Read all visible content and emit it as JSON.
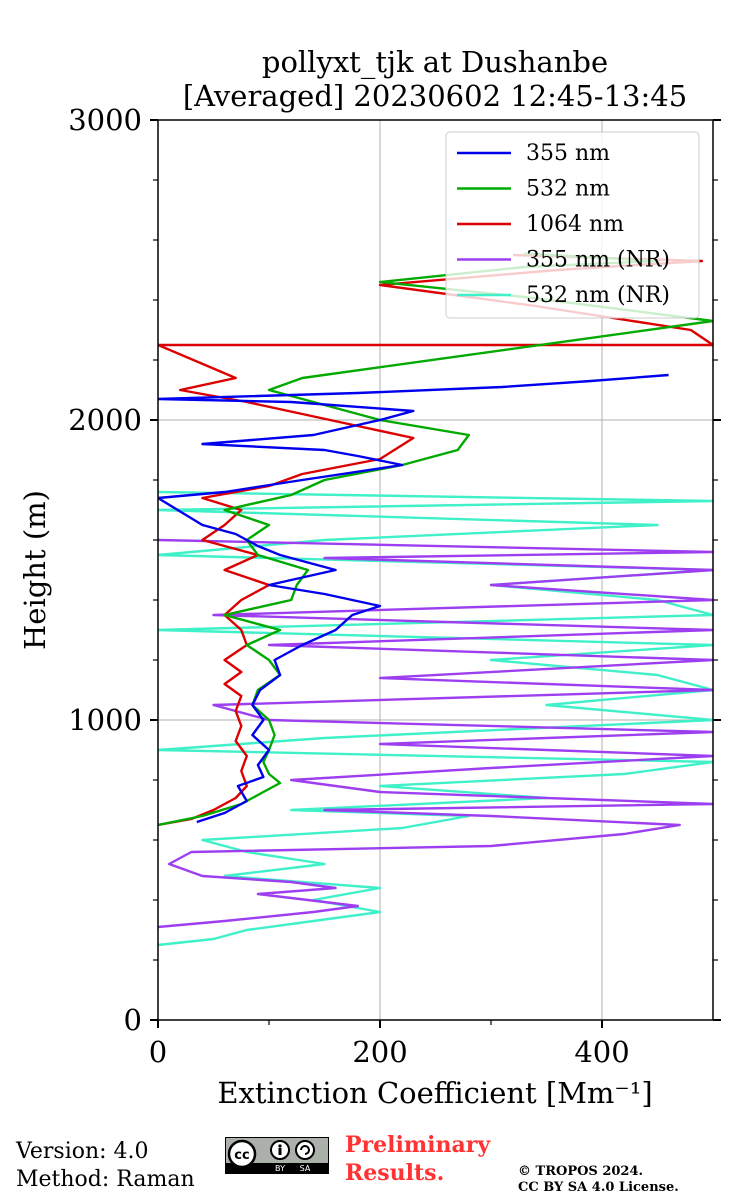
{
  "chart_data": {
    "type": "line",
    "title": "pollyxt_tjk at Dushanbe",
    "subtitle": "[Averaged] 20230602 12:45-13:45",
    "xlabel": "Extinction Coefficient [Mm⁻¹]",
    "ylabel": "Height (m)",
    "xlim": [
      0,
      500
    ],
    "ylim": [
      0,
      3000
    ],
    "xticks": [
      "0",
      "200",
      "400"
    ],
    "yticks": [
      "0",
      "1000",
      "2000",
      "3000"
    ],
    "grid": true,
    "legend_position": "top-right",
    "series": [
      {
        "name": "355 nm",
        "color": "#0000ee",
        "points": [
          [
            35,
            660
          ],
          [
            60,
            690
          ],
          [
            80,
            730
          ],
          [
            72,
            780
          ],
          [
            95,
            810
          ],
          [
            90,
            850
          ],
          [
            100,
            900
          ],
          [
            85,
            950
          ],
          [
            95,
            1000
          ],
          [
            85,
            1050
          ],
          [
            92,
            1100
          ],
          [
            110,
            1150
          ],
          [
            105,
            1200
          ],
          [
            130,
            1250
          ],
          [
            160,
            1300
          ],
          [
            175,
            1350
          ],
          [
            200,
            1380
          ],
          [
            150,
            1420
          ],
          [
            100,
            1450
          ],
          [
            160,
            1500
          ],
          [
            110,
            1550
          ],
          [
            90,
            1580
          ],
          [
            70,
            1620
          ],
          [
            40,
            1650
          ],
          [
            0,
            1740
          ],
          [
            60,
            1760
          ],
          [
            130,
            1800
          ],
          [
            220,
            1850
          ],
          [
            180,
            1880
          ],
          [
            150,
            1900
          ],
          [
            40,
            1920
          ],
          [
            140,
            1950
          ],
          [
            200,
            2000
          ],
          [
            230,
            2030
          ],
          [
            120,
            2060
          ],
          [
            0,
            2070
          ],
          [
            180,
            2090
          ],
          [
            310,
            2110
          ],
          [
            390,
            2130
          ],
          [
            460,
            2150
          ]
        ]
      },
      {
        "name": "532 nm",
        "color": "#00aa00",
        "points": [
          [
            0,
            650
          ],
          [
            40,
            680
          ],
          [
            75,
            720
          ],
          [
            95,
            760
          ],
          [
            110,
            790
          ],
          [
            100,
            820
          ],
          [
            95,
            860
          ],
          [
            100,
            900
          ],
          [
            105,
            950
          ],
          [
            100,
            1000
          ],
          [
            85,
            1050
          ],
          [
            90,
            1100
          ],
          [
            110,
            1150
          ],
          [
            100,
            1200
          ],
          [
            80,
            1250
          ],
          [
            110,
            1300
          ],
          [
            60,
            1350
          ],
          [
            120,
            1400
          ],
          [
            125,
            1450
          ],
          [
            135,
            1500
          ],
          [
            90,
            1550
          ],
          [
            80,
            1600
          ],
          [
            100,
            1650
          ],
          [
            60,
            1700
          ],
          [
            120,
            1750
          ],
          [
            150,
            1800
          ],
          [
            220,
            1850
          ],
          [
            270,
            1900
          ],
          [
            280,
            1950
          ],
          [
            200,
            2000
          ],
          [
            150,
            2050
          ],
          [
            100,
            2100
          ],
          [
            130,
            2140
          ],
          [
            500,
            2330
          ],
          [
            330,
            2410
          ],
          [
            200,
            2460
          ],
          [
            330,
            2510
          ],
          [
            450,
            2530
          ],
          [
            330,
            2555
          ]
        ]
      },
      {
        "name": "1064 nm",
        "color": "#dd0000",
        "points": [
          [
            0,
            650
          ],
          [
            30,
            670
          ],
          [
            50,
            700
          ],
          [
            70,
            740
          ],
          [
            80,
            780
          ],
          [
            75,
            830
          ],
          [
            80,
            880
          ],
          [
            70,
            930
          ],
          [
            75,
            980
          ],
          [
            70,
            1030
          ],
          [
            75,
            1080
          ],
          [
            60,
            1120
          ],
          [
            75,
            1160
          ],
          [
            60,
            1200
          ],
          [
            80,
            1250
          ],
          [
            75,
            1300
          ],
          [
            60,
            1350
          ],
          [
            75,
            1400
          ],
          [
            100,
            1450
          ],
          [
            60,
            1500
          ],
          [
            90,
            1550
          ],
          [
            40,
            1600
          ],
          [
            60,
            1650
          ],
          [
            75,
            1700
          ],
          [
            40,
            1740
          ],
          [
            100,
            1780
          ],
          [
            130,
            1820
          ],
          [
            200,
            1870
          ],
          [
            230,
            1940
          ],
          [
            180,
            1980
          ],
          [
            130,
            2020
          ],
          [
            80,
            2060
          ],
          [
            20,
            2100
          ],
          [
            70,
            2140
          ],
          [
            0,
            2250
          ],
          [
            500,
            2250
          ],
          [
            480,
            2300
          ],
          [
            340,
            2380
          ],
          [
            200,
            2450
          ],
          [
            360,
            2500
          ],
          [
            490,
            2530
          ],
          [
            320,
            2550
          ]
        ]
      },
      {
        "name": "355 nm (NR)",
        "color": "#9d3ff0",
        "points": [
          [
            0,
            310
          ],
          [
            60,
            330
          ],
          [
            140,
            360
          ],
          [
            180,
            380
          ],
          [
            90,
            420
          ],
          [
            160,
            440
          ],
          [
            120,
            460
          ],
          [
            40,
            480
          ],
          [
            10,
            520
          ],
          [
            30,
            560
          ],
          [
            300,
            580
          ],
          [
            420,
            620
          ],
          [
            470,
            650
          ],
          [
            300,
            680
          ],
          [
            150,
            700
          ],
          [
            500,
            720
          ],
          [
            200,
            760
          ],
          [
            120,
            800
          ],
          [
            300,
            840
          ],
          [
            500,
            880
          ],
          [
            200,
            920
          ],
          [
            500,
            960
          ],
          [
            100,
            1000
          ],
          [
            50,
            1050
          ],
          [
            500,
            1100
          ],
          [
            200,
            1140
          ],
          [
            500,
            1200
          ],
          [
            100,
            1250
          ],
          [
            500,
            1300
          ],
          [
            50,
            1350
          ],
          [
            500,
            1400
          ],
          [
            300,
            1450
          ],
          [
            500,
            1500
          ],
          [
            150,
            1540
          ],
          [
            500,
            1560
          ],
          [
            0,
            1600
          ]
        ]
      },
      {
        "name": "532 nm (NR)",
        "color": "#3ff0c8",
        "points": [
          [
            0,
            250
          ],
          [
            50,
            270
          ],
          [
            80,
            300
          ],
          [
            140,
            330
          ],
          [
            200,
            360
          ],
          [
            140,
            400
          ],
          [
            200,
            440
          ],
          [
            60,
            480
          ],
          [
            150,
            520
          ],
          [
            80,
            560
          ],
          [
            40,
            600
          ],
          [
            220,
            640
          ],
          [
            280,
            680
          ],
          [
            120,
            700
          ],
          [
            350,
            740
          ],
          [
            200,
            780
          ],
          [
            420,
            820
          ],
          [
            500,
            860
          ],
          [
            0,
            900
          ],
          [
            150,
            940
          ],
          [
            500,
            1000
          ],
          [
            350,
            1050
          ],
          [
            500,
            1100
          ],
          [
            450,
            1150
          ],
          [
            300,
            1200
          ],
          [
            500,
            1250
          ],
          [
            0,
            1300
          ],
          [
            500,
            1350
          ],
          [
            450,
            1400
          ],
          [
            300,
            1450
          ],
          [
            500,
            1500
          ],
          [
            0,
            1550
          ],
          [
            150,
            1600
          ],
          [
            450,
            1650
          ],
          [
            0,
            1700
          ],
          [
            500,
            1730
          ],
          [
            0,
            1760
          ]
        ]
      }
    ]
  },
  "footer": {
    "version": "Version: 4.0",
    "method": "Method: Raman",
    "preliminary_line1": "Preliminary",
    "preliminary_line2": "Results.",
    "copyright_line1": "© TROPOS 2024.",
    "copyright_line2": "CC BY SA 4.0 License.",
    "cc_label": "cc",
    "by_label": "BY",
    "sa_label": "SA"
  }
}
